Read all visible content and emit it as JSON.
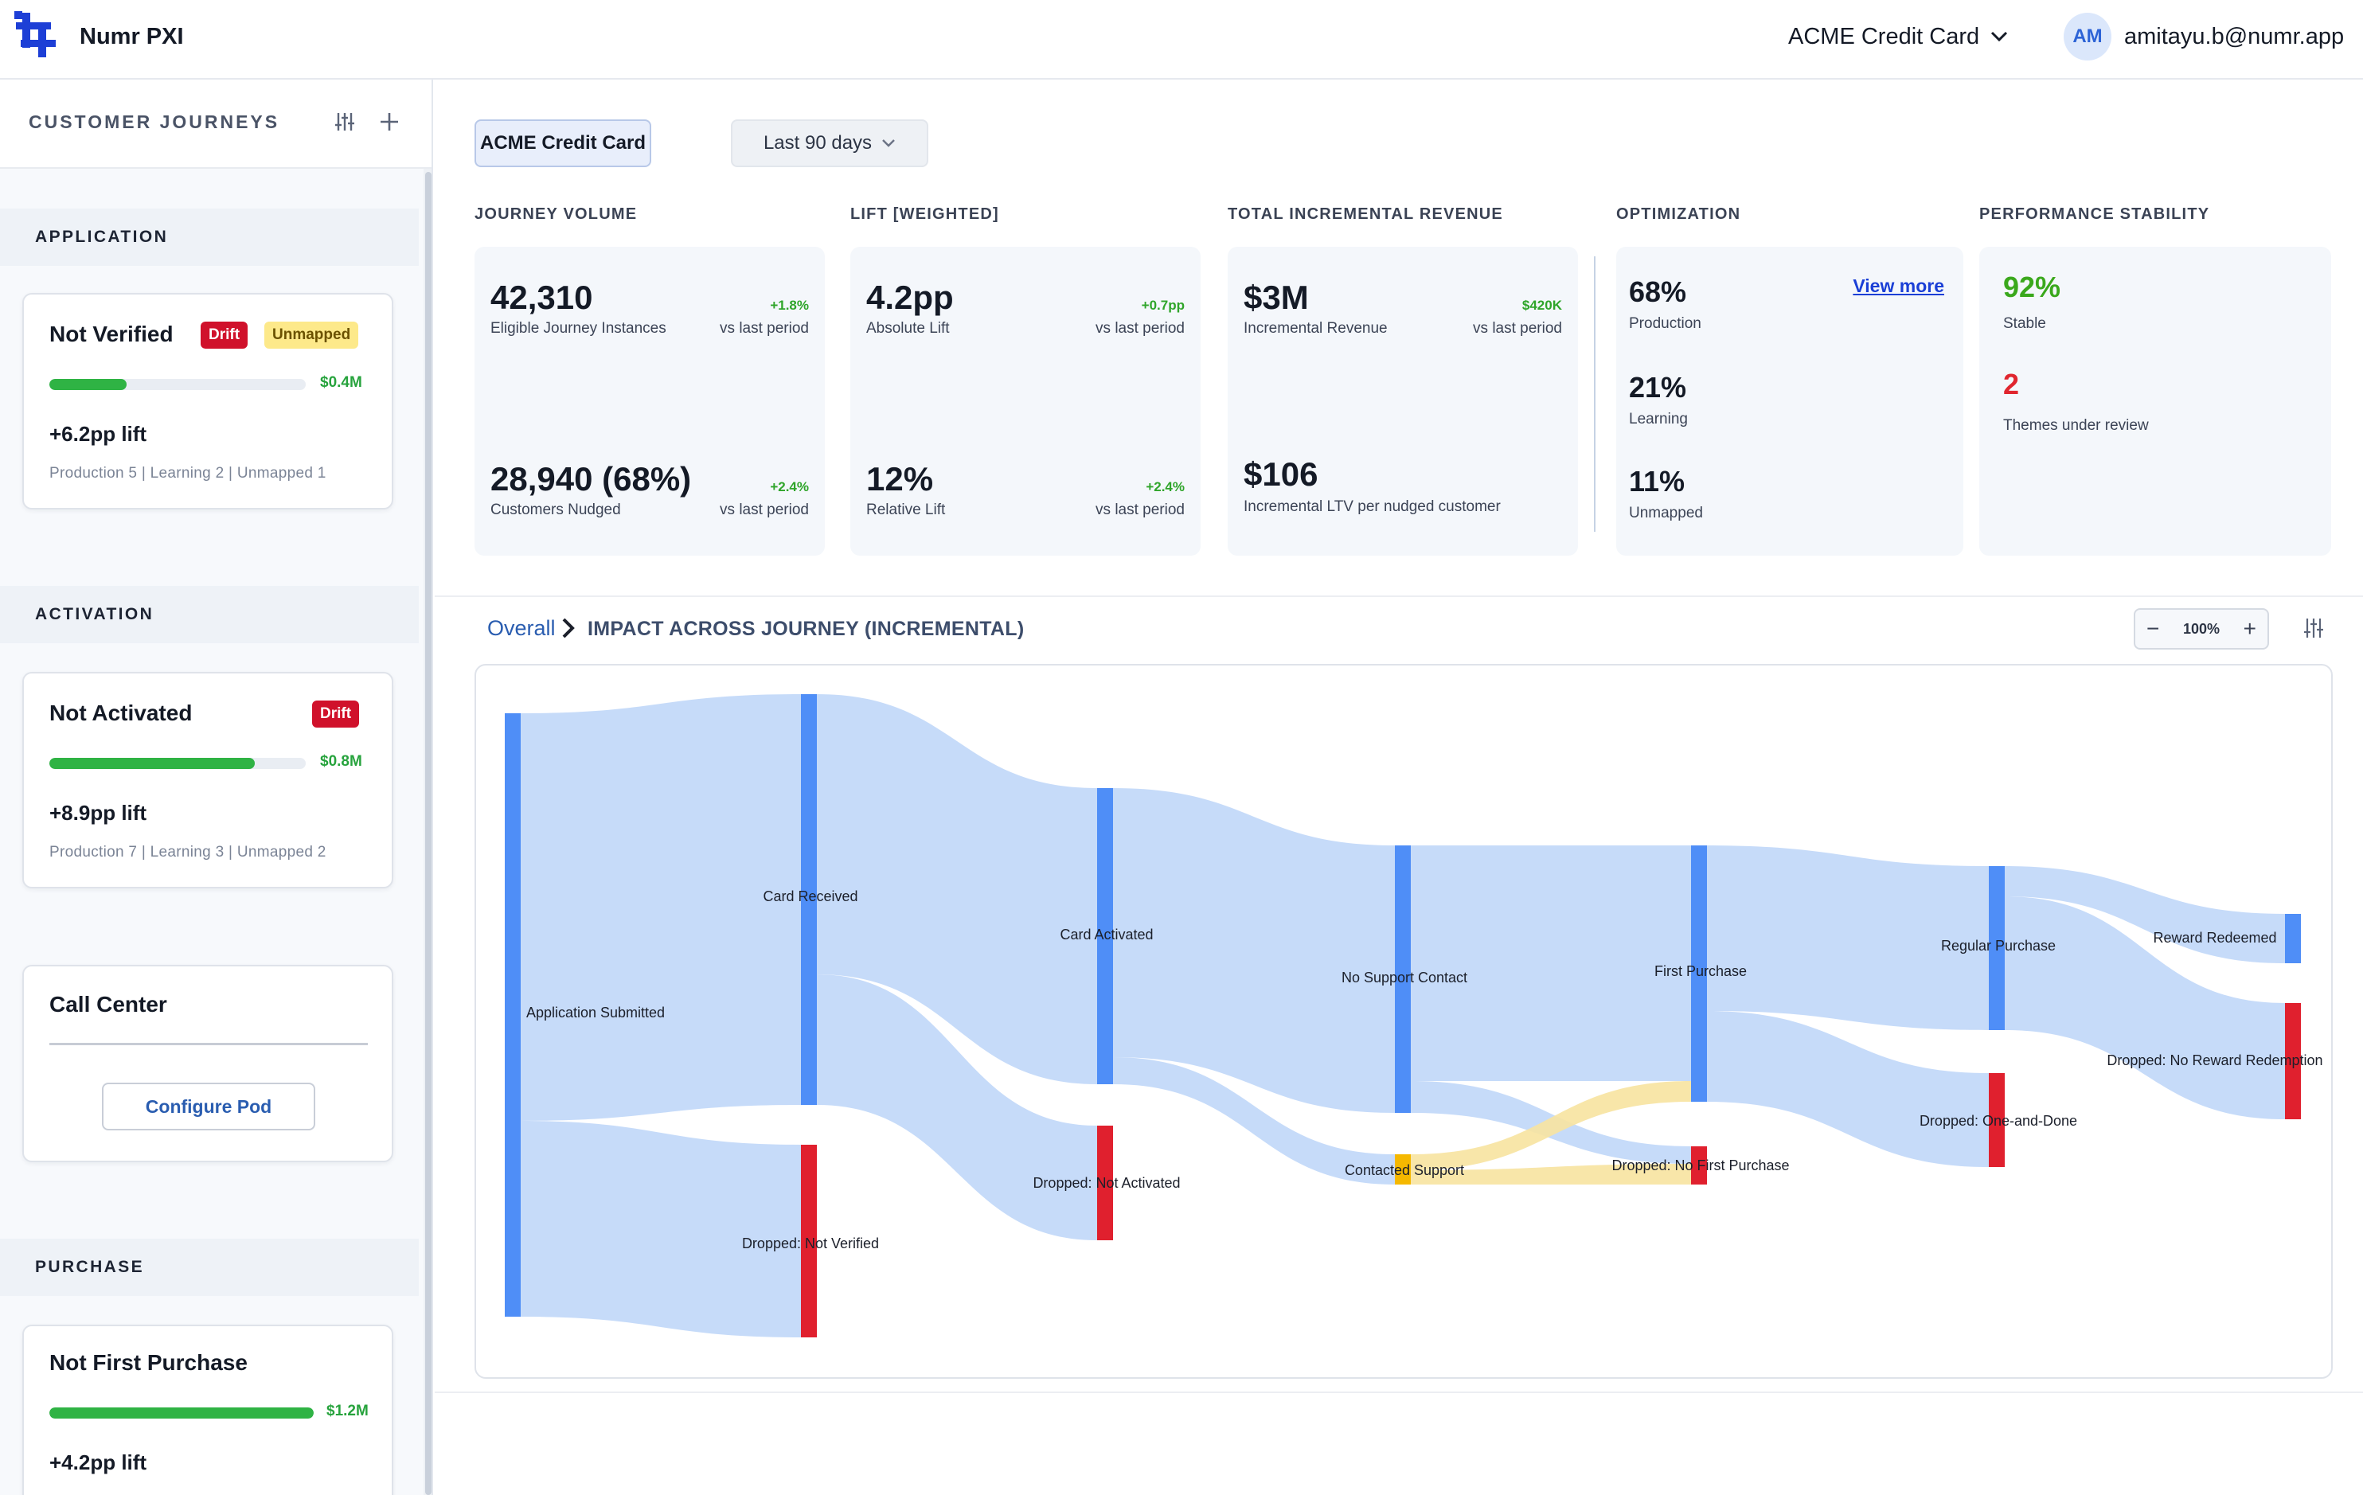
{
  "header": {
    "app_name": "Numr PXI",
    "product": "ACME Credit Card",
    "user_initials": "AM",
    "user_email": "amitayu.b@numr.app",
    "brand_color": "#1d3fd6"
  },
  "sidebar": {
    "title": "CUSTOMER JOURNEYS",
    "sections": [
      {
        "label": "APPLICATION",
        "pod": {
          "title": "Not Verified",
          "badges": [
            "Drift",
            "Unmapped"
          ],
          "progress": 0.3,
          "value": "$0.4M",
          "lift": "+6.2pp lift",
          "meta": "Production 5 | Learning 2 | Unmapped 1"
        }
      },
      {
        "label": "ACTIVATION",
        "pods": [
          {
            "title": "Not Activated",
            "badges": [
              "Drift"
            ],
            "progress": 0.8,
            "value": "$0.8M",
            "lift": "+8.9pp lift",
            "meta": "Production 7 | Learning 3 | Unmapped 2"
          },
          {
            "title": "Call Center",
            "action": "Configure Pod"
          }
        ]
      },
      {
        "label": "PURCHASE",
        "pod": {
          "title": "Not First Purchase",
          "progress": 1.0,
          "value": "$1.2M",
          "lift": "+4.2pp lift"
        }
      }
    ]
  },
  "filters": {
    "product": "ACME Credit Card",
    "range": "Last 90 days"
  },
  "kpis": {
    "journey_volume": {
      "label": "JOURNEY VOLUME",
      "primary": {
        "value": "42,310",
        "sub": "Eligible Journey Instances",
        "delta": "+1.8%",
        "vs": "vs last period"
      },
      "secondary": {
        "value": "28,940 (68%)",
        "sub": "Customers Nudged",
        "delta": "+2.4%",
        "vs": "vs last period"
      }
    },
    "lift": {
      "label": "LIFT [WEIGHTED]",
      "primary": {
        "value": "4.2pp",
        "sub": "Absolute Lift",
        "delta": "+0.7pp",
        "vs": "vs last period"
      },
      "secondary": {
        "value": "12%",
        "sub": "Relative Lift",
        "delta": "+2.4%",
        "vs": "vs last period"
      }
    },
    "revenue": {
      "label": "TOTAL INCREMENTAL REVENUE",
      "primary": {
        "value": "$3M",
        "sub": "Incremental Revenue",
        "delta": "$420K",
        "vs": "vs last period"
      },
      "secondary": {
        "value": "$106",
        "sub": "Incremental LTV per nudged customer"
      }
    },
    "optimization": {
      "label": "OPTIMIZATION",
      "link": "View more",
      "items": [
        {
          "value": "68%",
          "sub": "Production"
        },
        {
          "value": "21%",
          "sub": "Learning"
        },
        {
          "value": "11%",
          "sub": "Unmapped"
        }
      ]
    },
    "stability": {
      "label": "PERFORMANCE STABILITY",
      "items": [
        {
          "value": "92%",
          "sub": "Stable",
          "color": "#3aa81c"
        },
        {
          "value": "2",
          "sub": "Themes under review",
          "color": "#e0262f"
        }
      ]
    }
  },
  "journey": {
    "breadcrumb_root": "Overall",
    "title": "IMPACT ACROSS JOURNEY (INCREMENTAL)",
    "zoom": "100%"
  },
  "colors": {
    "node_blue": "#4f8ef7",
    "node_red": "#e0202e",
    "node_yellow": "#f5b800",
    "link_blue": "#c3d9f9",
    "link_yellow": "#f7e3a0"
  },
  "chart_data": {
    "type": "sankey",
    "nodes": [
      {
        "name": "Application Submitted",
        "color": "blue"
      },
      {
        "name": "Card Received",
        "color": "blue"
      },
      {
        "name": "Dropped: Not Verified",
        "color": "red"
      },
      {
        "name": "Card Activated",
        "color": "blue"
      },
      {
        "name": "Dropped: Not Activated",
        "color": "red"
      },
      {
        "name": "No Support Contact",
        "color": "blue"
      },
      {
        "name": "Contacted Support",
        "color": "yellow"
      },
      {
        "name": "First Purchase",
        "color": "blue"
      },
      {
        "name": "Dropped: No First Purchase",
        "color": "red"
      },
      {
        "name": "Regular Purchase",
        "color": "blue"
      },
      {
        "name": "Dropped: One-and-Done",
        "color": "red"
      },
      {
        "name": "Reward Redeemed",
        "color": "blue"
      },
      {
        "name": "Dropped: No Reward Redemption",
        "color": "red"
      }
    ],
    "links": [
      {
        "source": "Application Submitted",
        "target": "Card Received",
        "value": 68
      },
      {
        "source": "Application Submitted",
        "target": "Dropped: Not Verified",
        "value": 32
      },
      {
        "source": "Card Received",
        "target": "Card Activated",
        "value": 49
      },
      {
        "source": "Card Received",
        "target": "Dropped: Not Activated",
        "value": 19
      },
      {
        "source": "Card Activated",
        "target": "No Support Contact",
        "value": 44
      },
      {
        "source": "Card Activated",
        "target": "Contacted Support",
        "value": 5
      },
      {
        "source": "No Support Contact",
        "target": "First Purchase",
        "value": 39
      },
      {
        "source": "No Support Contact",
        "target": "Dropped: No First Purchase",
        "value": 5
      },
      {
        "source": "Contacted Support",
        "target": "First Purchase",
        "value": 3
      },
      {
        "source": "Contacted Support",
        "target": "Dropped: No First Purchase",
        "value": 2
      },
      {
        "source": "First Purchase",
        "target": "Regular Purchase",
        "value": 27
      },
      {
        "source": "First Purchase",
        "target": "Dropped: One-and-Done",
        "value": 15
      },
      {
        "source": "Regular Purchase",
        "target": "Reward Redeemed",
        "value": 8
      },
      {
        "source": "Regular Purchase",
        "target": "Dropped: No Reward Redemption",
        "value": 19
      }
    ]
  }
}
